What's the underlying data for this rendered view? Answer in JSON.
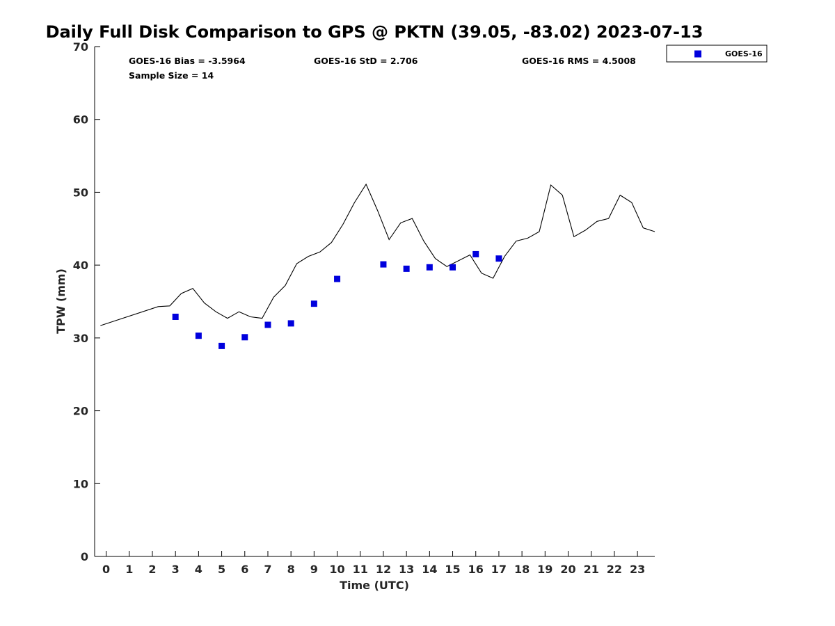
{
  "chart_data": {
    "type": "line",
    "title": "Daily Full Disk Comparison to GPS @ PKTN (39.05, -83.02) 2023-07-13",
    "xlabel": "Time (UTC)",
    "ylabel": "TPW (mm)",
    "xlim": [
      -0.5,
      23.75
    ],
    "ylim": [
      0,
      70
    ],
    "x_ticks": [
      0,
      1,
      2,
      3,
      4,
      5,
      6,
      7,
      8,
      9,
      10,
      11,
      12,
      13,
      14,
      15,
      16,
      17,
      18,
      19,
      20,
      21,
      22,
      23
    ],
    "y_ticks": [
      0,
      10,
      20,
      30,
      40,
      50,
      60,
      70
    ],
    "grid": false,
    "legend_position": "top-right, outside plot",
    "stats": {
      "bias": "GOES-16 Bias = -3.5964",
      "std": "GOES-16 StD = 2.706",
      "rms": "GOES-16 RMS = 4.5008",
      "sample_size": "Sample Size = 14"
    },
    "series": [
      {
        "style": "line",
        "color": "#000000",
        "x": [
          -0.25,
          2.25,
          2.75,
          3.25,
          3.75,
          4.25,
          4.75,
          5.25,
          5.75,
          6.25,
          6.75,
          7.25,
          7.75,
          8.25,
          8.75,
          9.25,
          9.75,
          10.25,
          10.75,
          11.25,
          11.75,
          12.25,
          12.75,
          13.25,
          13.75,
          14.25,
          14.75,
          15.25,
          15.75,
          16.25,
          16.75,
          17.25,
          17.75,
          18.25,
          18.75,
          19.25,
          19.75,
          20.25,
          20.75,
          21.25,
          21.75,
          22.25,
          22.75,
          23.25,
          23.75
        ],
        "values": [
          31.7,
          34.3,
          34.4,
          36.1,
          36.8,
          34.8,
          33.6,
          32.7,
          33.6,
          32.9,
          32.7,
          35.6,
          37.2,
          40.2,
          41.2,
          41.8,
          43.1,
          45.6,
          48.6,
          51.1,
          47.5,
          43.5,
          45.8,
          46.4,
          43.3,
          40.9,
          39.8,
          40.6,
          41.4,
          38.9,
          38.2,
          41.2,
          43.3,
          43.7,
          44.6,
          51.0,
          49.6,
          43.9,
          44.8,
          46.0,
          46.4,
          49.6,
          48.6,
          45.1,
          44.6
        ]
      },
      {
        "name": "GOES-16",
        "style": "marker",
        "marker": "square",
        "color": "#0000dd",
        "x": [
          3,
          4,
          5,
          6,
          7,
          8,
          9,
          10,
          12,
          13,
          14,
          15,
          16,
          17
        ],
        "values": [
          32.9,
          30.3,
          28.9,
          30.1,
          31.8,
          32.0,
          34.7,
          38.1,
          40.1,
          39.5,
          39.7,
          39.7,
          41.5,
          40.9
        ]
      }
    ]
  }
}
